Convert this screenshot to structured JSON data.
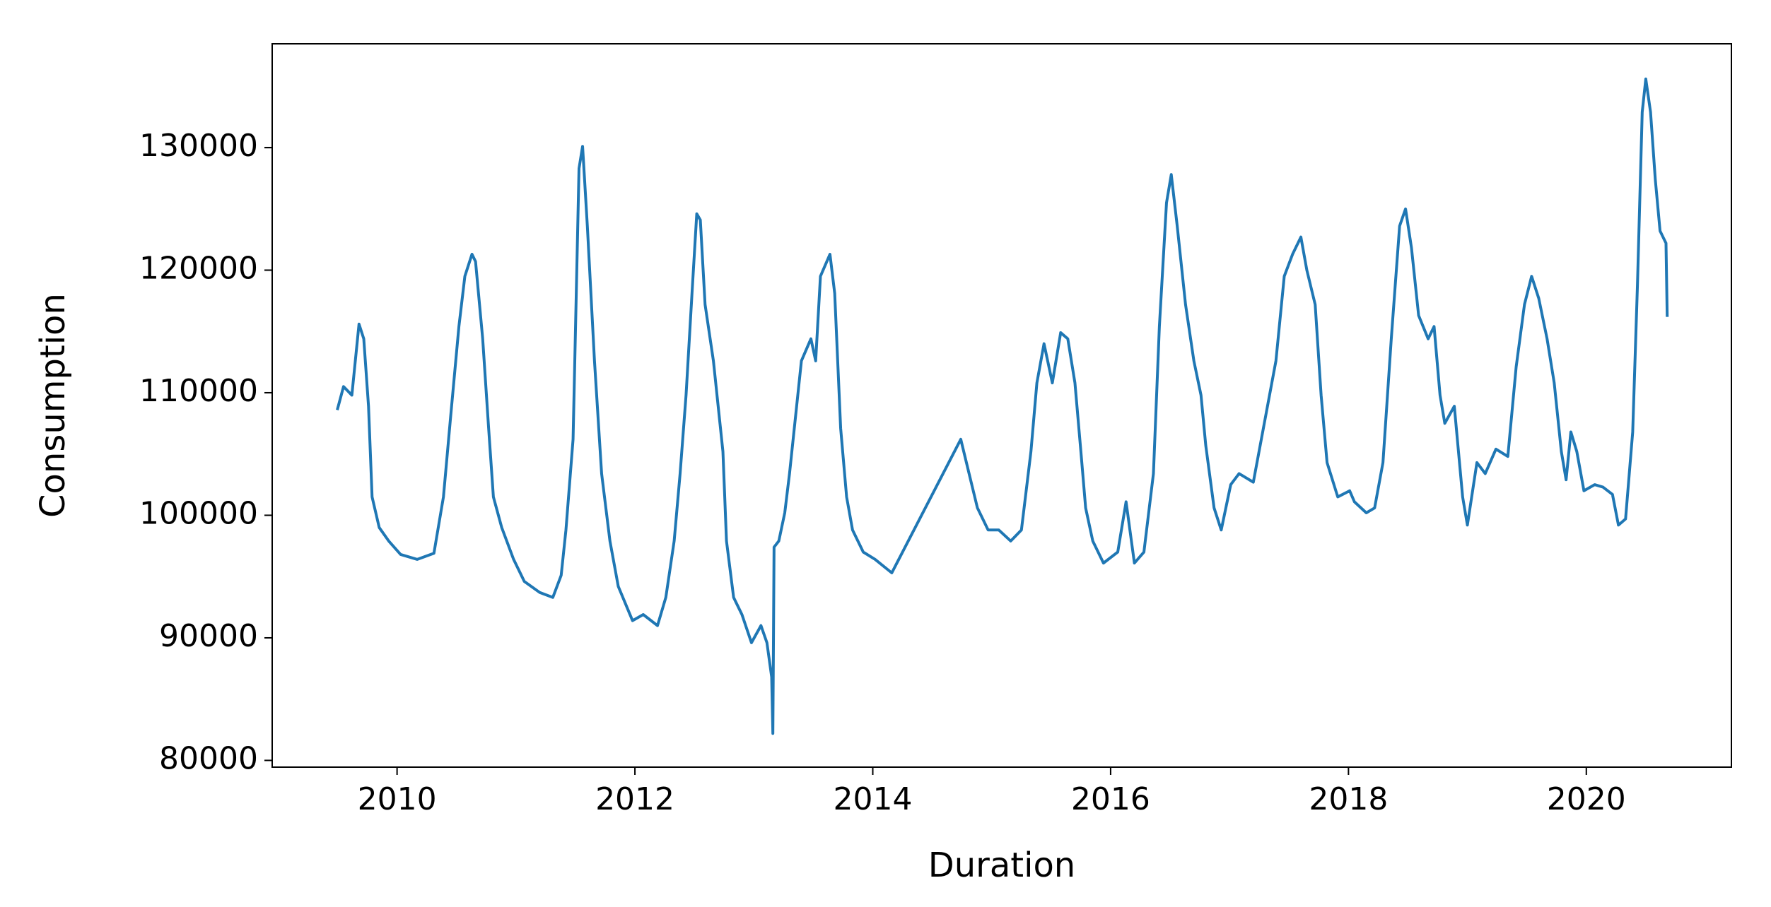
{
  "chart_data": {
    "type": "line",
    "xlabel": "Duration",
    "ylabel": "Consumption",
    "color": "#1f77b4",
    "xlim": [
      2008.95,
      2021.22
    ],
    "ylim": [
      79450,
      138470
    ],
    "xticks": [
      2010,
      2012,
      2014,
      2016,
      2018,
      2020
    ],
    "yticks": [
      80000,
      90000,
      100000,
      110000,
      120000,
      130000
    ],
    "grid": false,
    "x": [
      2009.5,
      2009.55,
      2009.62,
      2009.68,
      2009.72,
      2009.76,
      2009.79,
      2009.85,
      2009.93,
      2010.03,
      2010.17,
      2010.31,
      2010.39,
      2010.45,
      2010.52,
      2010.57,
      2010.63,
      2010.66,
      2010.72,
      2010.77,
      2010.81,
      2010.88,
      2010.98,
      2011.07,
      2011.2,
      2011.31,
      2011.38,
      2011.42,
      2011.48,
      2011.53,
      2011.56,
      2011.6,
      2011.66,
      2011.72,
      2011.79,
      2011.86,
      2011.98,
      2012.07,
      2012.19,
      2012.26,
      2012.33,
      2012.38,
      2012.43,
      2012.48,
      2012.52,
      2012.55,
      2012.59,
      2012.66,
      2012.74,
      2012.77,
      2012.83,
      2012.9,
      2012.98,
      2013.06,
      2013.11,
      2013.15,
      2013.16,
      2013.17,
      2013.21,
      2013.26,
      2013.3,
      2013.35,
      2013.4,
      2013.48,
      2013.52,
      2013.56,
      2013.64,
      2013.68,
      2013.73,
      2013.78,
      2013.83,
      2013.92,
      2014.02,
      2014.16,
      2014.74,
      2014.81,
      2014.88,
      2014.97,
      2015.06,
      2015.16,
      2015.25,
      2015.33,
      2015.38,
      2015.44,
      2015.51,
      2015.58,
      2015.64,
      2015.7,
      2015.75,
      2015.79,
      2015.85,
      2015.94,
      2016.06,
      2016.13,
      2016.2,
      2016.28,
      2016.36,
      2016.41,
      2016.47,
      2016.51,
      2016.56,
      2016.63,
      2016.7,
      2016.76,
      2016.8,
      2016.87,
      2016.93,
      2017.01,
      2017.08,
      2017.2,
      2017.39,
      2017.46,
      2017.53,
      2017.6,
      2017.65,
      2017.72,
      2017.77,
      2017.82,
      2017.91,
      2018.01,
      2018.05,
      2018.15,
      2018.22,
      2018.29,
      2018.36,
      2018.43,
      2018.48,
      2018.53,
      2018.59,
      2018.67,
      2018.72,
      2018.77,
      2018.81,
      2018.89,
      2018.96,
      2019.0,
      2019.08,
      2019.15,
      2019.24,
      2019.34,
      2019.41,
      2019.48,
      2019.54,
      2019.6,
      2019.67,
      2019.73,
      2019.79,
      2019.83,
      2019.87,
      2019.92,
      2019.98,
      2020.07,
      2020.14,
      2020.22,
      2020.27,
      2020.33,
      2020.39,
      2020.43,
      2020.47,
      2020.5,
      2020.54,
      2020.58,
      2020.62,
      2020.67,
      2020.68
    ],
    "values": [
      108700,
      110500,
      109800,
      115600,
      114400,
      108900,
      101500,
      99000,
      97900,
      96800,
      96400,
      96900,
      101500,
      108000,
      115400,
      119500,
      121300,
      120700,
      114400,
      107100,
      101500,
      99000,
      96400,
      94600,
      93700,
      93300,
      95100,
      98800,
      106200,
      128300,
      130100,
      123600,
      112600,
      103400,
      97900,
      94200,
      91400,
      91900,
      91000,
      93300,
      97900,
      103400,
      109800,
      118100,
      124600,
      124100,
      117200,
      112600,
      105200,
      97900,
      93300,
      91900,
      89600,
      91000,
      89600,
      86800,
      82200,
      97400,
      97900,
      100200,
      103400,
      108000,
      112600,
      114400,
      112600,
      119500,
      121300,
      118100,
      107100,
      101500,
      98800,
      97000,
      96400,
      95300,
      106200,
      103400,
      100600,
      98800,
      98800,
      97900,
      98800,
      105200,
      110800,
      114000,
      110800,
      114900,
      114400,
      110800,
      105200,
      100600,
      97900,
      96100,
      97000,
      101100,
      96100,
      97000,
      103400,
      115400,
      125500,
      127800,
      123600,
      117200,
      112600,
      109800,
      105700,
      100600,
      98800,
      102500,
      103400,
      102700,
      112600,
      119500,
      121300,
      122700,
      120000,
      117200,
      109800,
      104300,
      101500,
      102000,
      101100,
      100200,
      100600,
      104300,
      114400,
      123600,
      125000,
      121800,
      116300,
      114400,
      115400,
      109800,
      107500,
      108900,
      101500,
      99200,
      104300,
      103400,
      105400,
      104800,
      112100,
      117200,
      119500,
      117700,
      114400,
      110800,
      105200,
      102900,
      106800,
      105200,
      102000,
      102500,
      102300,
      101700,
      99200,
      99700,
      106800,
      118800,
      132900,
      135600,
      132900,
      127400,
      123200,
      122200,
      116300
    ]
  }
}
